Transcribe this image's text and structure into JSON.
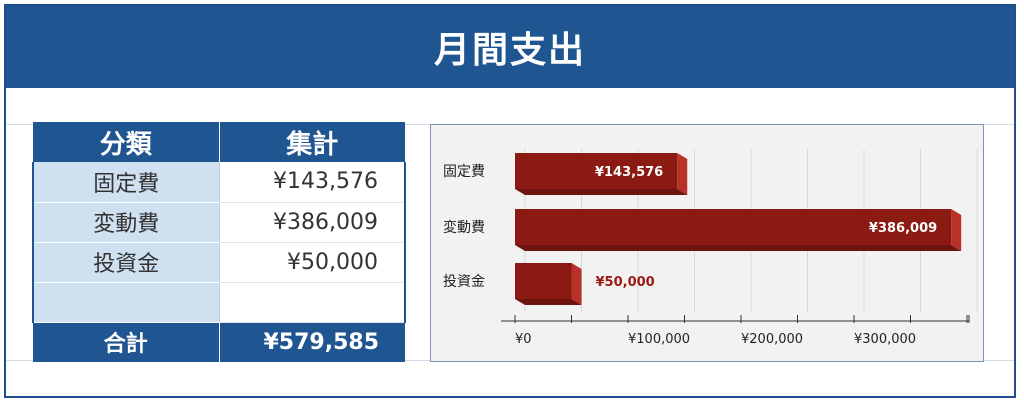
{
  "title": "月間支出",
  "table": {
    "headers": [
      "分類",
      "集計"
    ],
    "rows": [
      {
        "category": "固定費",
        "amount": "¥143,576"
      },
      {
        "category": "変動費",
        "amount": "¥386,009"
      },
      {
        "category": "投資金",
        "amount": "¥50,000"
      },
      {
        "category": "",
        "amount": ""
      }
    ],
    "total_label": "合計",
    "total_value": "¥579,585"
  },
  "colors": {
    "header_blue": "#1f5590",
    "bar_red": "#8b1a12",
    "bar_top": "#6e140e",
    "bar_side": "#b8322a",
    "label_red": "#9b1b14",
    "category_fill": "#cfe0f1"
  },
  "chart_data": {
    "type": "bar",
    "orientation": "horizontal",
    "categories": [
      "固定費",
      "変動費",
      "投資金"
    ],
    "values": [
      143576,
      386009,
      50000
    ],
    "data_labels": [
      "¥143,576",
      "¥386,009",
      "¥50,000"
    ],
    "x_ticks": [
      0,
      100000,
      200000,
      300000
    ],
    "x_tick_labels": [
      "¥0",
      "¥100,000",
      "¥200,000",
      "¥300,000"
    ],
    "xlim": [
      0,
      400000
    ],
    "grid": true,
    "style": "3d"
  }
}
